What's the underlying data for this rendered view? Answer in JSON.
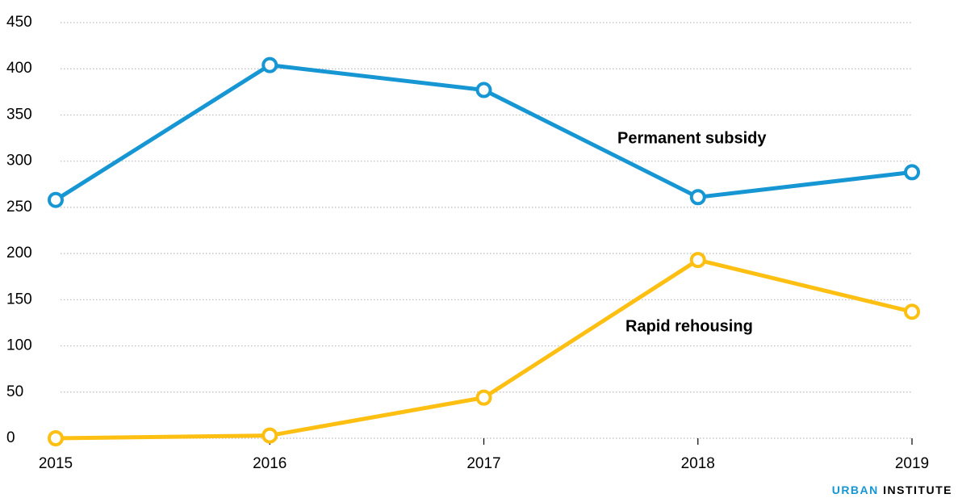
{
  "chart_data": {
    "type": "line",
    "x": [
      2015,
      2016,
      2017,
      2018,
      2019
    ],
    "series": [
      {
        "name": "Permanent subsidy",
        "color": "#1696d2",
        "values": [
          258,
          404,
          377,
          261,
          288
        ]
      },
      {
        "name": "Rapid rehousing",
        "color": "#fdbf11",
        "values": [
          0,
          3,
          44,
          193,
          137
        ]
      }
    ],
    "xlim": [
      2015,
      2019
    ],
    "xticks": [
      2015,
      2016,
      2017,
      2018,
      2019
    ],
    "ylim": [
      0,
      450
    ],
    "yticks": [
      0,
      50,
      100,
      150,
      200,
      250,
      300,
      350,
      400,
      450
    ],
    "grid": true
  },
  "logo": [
    "URBAN",
    "INSTITUTE"
  ]
}
